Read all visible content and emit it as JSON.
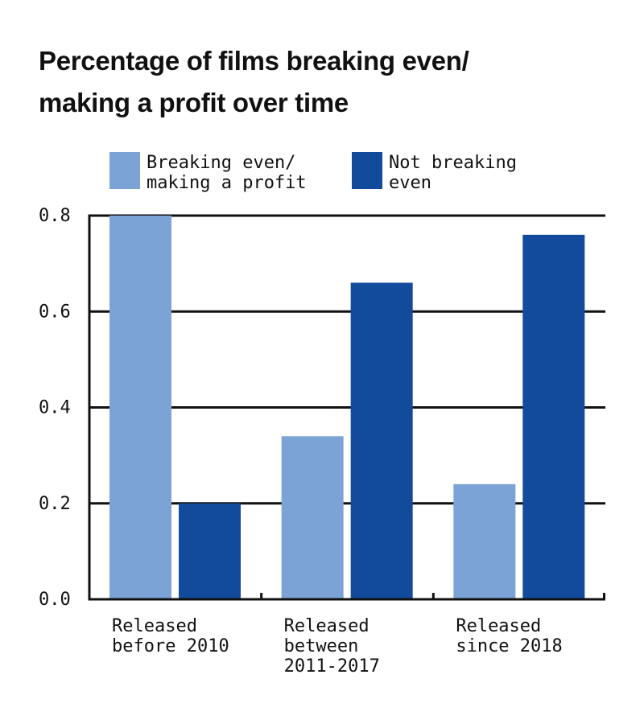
{
  "chart_data": {
    "type": "bar",
    "title_lines": [
      "Percentage of films breaking even/",
      "making a profit over time"
    ],
    "categories": [
      [
        "Released",
        "before 2010"
      ],
      [
        "Released",
        "between",
        "2011-2017"
      ],
      [
        "Released",
        "since 2018"
      ]
    ],
    "series": [
      {
        "name_lines": [
          "Breaking even/",
          "making a profit"
        ],
        "color": "#7ba3d6",
        "values": [
          0.8,
          0.34,
          0.24
        ]
      },
      {
        "name_lines": [
          "Not breaking",
          "even"
        ],
        "color": "#124a9c",
        "values": [
          0.2,
          0.66,
          0.76
        ]
      }
    ],
    "yticks": [
      "0.0",
      "0.2",
      "0.4",
      "0.6",
      "0.8"
    ],
    "ylim": [
      0,
      0.8
    ],
    "grid": true,
    "legend_position": "top"
  }
}
